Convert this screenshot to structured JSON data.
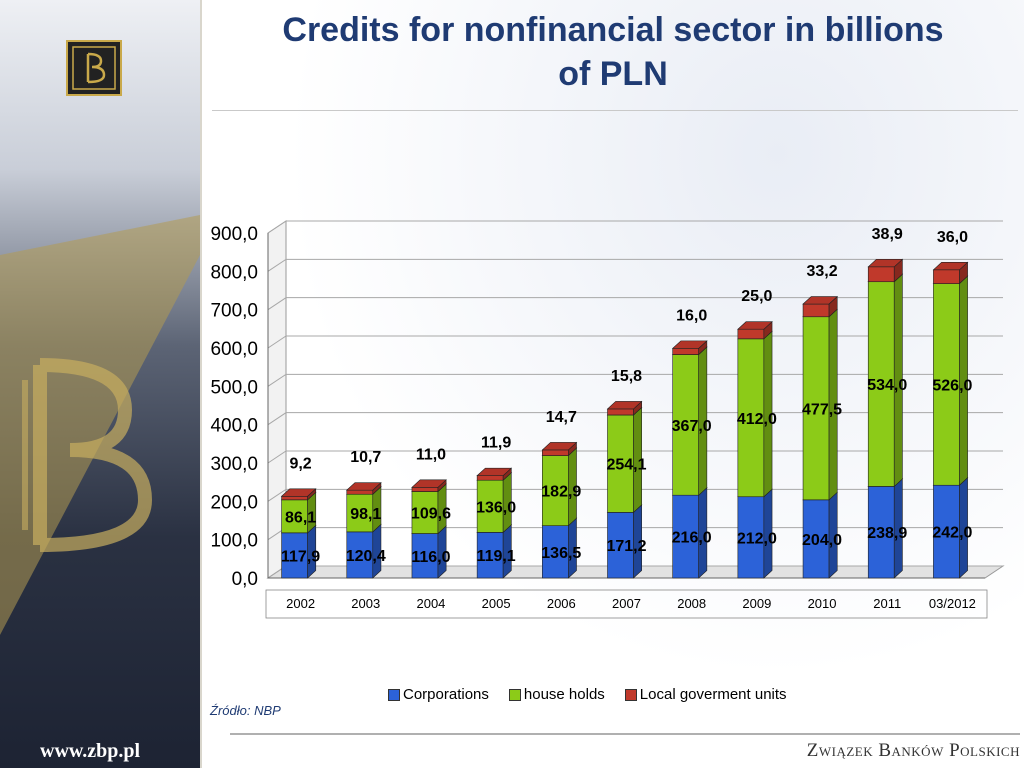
{
  "slide": {
    "title_line1": "Credits for nonfinancial sector in billions",
    "title_line2": "of PLN",
    "source": "Źródło: NBP",
    "footer_left": "www.zbp.pl",
    "footer_right": "Związek Banków Polskich"
  },
  "colors": {
    "corporations": "#2c62d8",
    "households": "#8ccb18",
    "local": "#c0392b",
    "title": "#1f3b73"
  },
  "chart_data": {
    "type": "bar",
    "stacked": true,
    "three_d": true,
    "categories": [
      "2002",
      "2003",
      "2004",
      "2005",
      "2006",
      "2007",
      "2008",
      "2009",
      "2010",
      "2011",
      "03/2012"
    ],
    "series": [
      {
        "name": "Corporations",
        "values": [
          117.9,
          120.4,
          116.0,
          119.1,
          136.5,
          171.2,
          216.0,
          212.0,
          204.0,
          238.9,
          242.0
        ],
        "labels": [
          "117,9",
          "120,4",
          "116,0",
          "119,1",
          "136,5",
          "171,2",
          "216,0",
          "212,0",
          "204,0",
          "238,9",
          "242,0"
        ]
      },
      {
        "name": "house holds",
        "values": [
          86.1,
          98.1,
          109.6,
          136.0,
          182.9,
          254.1,
          367.0,
          412.0,
          477.5,
          534.0,
          526.0
        ],
        "labels": [
          "86,1",
          "98,1",
          "109,6",
          "136,0",
          "182,9",
          "254,1",
          "367,0",
          "412,0",
          "477,5",
          "534,0",
          "526,0"
        ]
      },
      {
        "name": "Local goverment units",
        "values": [
          9.2,
          10.7,
          11.0,
          11.9,
          14.7,
          15.8,
          16.0,
          25.0,
          33.2,
          38.9,
          36.0
        ],
        "labels": [
          "9,2",
          "10,7",
          "11,0",
          "11,9",
          "14,7",
          "15,8",
          "16,0",
          "25,0",
          "33,2",
          "38,9",
          "36,0"
        ]
      }
    ],
    "ylim": [
      0,
      900
    ],
    "yticks": [
      "0,0",
      "100,0",
      "200,0",
      "300,0",
      "400,0",
      "500,0",
      "600,0",
      "700,0",
      "800,0",
      "900,0"
    ],
    "grid": true,
    "legend_position": "bottom"
  }
}
